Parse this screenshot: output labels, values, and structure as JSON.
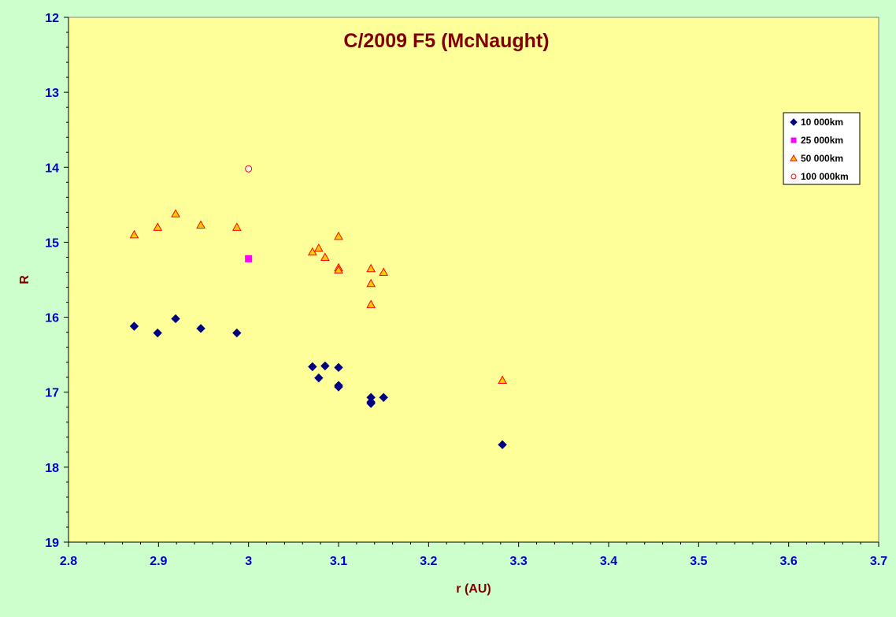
{
  "colors": {
    "page_bg": "#ccffcc",
    "plot_bg": "#ffff99",
    "title": "#800000",
    "tick_labels": "#0000cc",
    "series_10000": "#000080",
    "series_25000": "#ff00ff",
    "series_50000_fill": "#ffcc00",
    "series_50000_edge": "#ff0000",
    "series_100000_edge": "#ff0000"
  },
  "chart_data": {
    "type": "scatter",
    "title": "C/2009 F5 (McNaught)",
    "xlabel": "r (AU)",
    "ylabel": "R",
    "xlim": [
      2.8,
      3.7
    ],
    "ylim": [
      12,
      19
    ],
    "y_inverted": true,
    "x_ticks": [
      "2.8",
      "2.9",
      "3",
      "3.1",
      "3.2",
      "3.3",
      "3.4",
      "3.5",
      "3.6",
      "3.7"
    ],
    "y_ticks": [
      "12",
      "13",
      "14",
      "15",
      "16",
      "17",
      "18",
      "19"
    ],
    "grid": false,
    "legend_position": "top-right",
    "series": [
      {
        "name": "10 000km",
        "marker": "diamond",
        "points": [
          [
            2.873,
            16.12
          ],
          [
            2.899,
            16.21
          ],
          [
            2.919,
            16.02
          ],
          [
            2.947,
            16.15
          ],
          [
            2.987,
            16.21
          ],
          [
            3.071,
            16.66
          ],
          [
            3.078,
            16.81
          ],
          [
            3.085,
            16.65
          ],
          [
            3.1,
            16.67
          ],
          [
            3.1,
            16.91
          ],
          [
            3.1,
            16.93
          ],
          [
            3.136,
            17.07
          ],
          [
            3.136,
            17.15
          ],
          [
            3.136,
            17.13
          ],
          [
            3.15,
            17.07
          ],
          [
            3.282,
            17.7
          ]
        ]
      },
      {
        "name": "25 000km",
        "marker": "square",
        "points": [
          [
            3.0,
            15.22
          ]
        ]
      },
      {
        "name": "50 000km",
        "marker": "triangle",
        "points": [
          [
            2.873,
            14.9
          ],
          [
            2.899,
            14.8
          ],
          [
            2.919,
            14.62
          ],
          [
            2.947,
            14.77
          ],
          [
            2.987,
            14.8
          ],
          [
            3.071,
            15.13
          ],
          [
            3.078,
            15.08
          ],
          [
            3.085,
            15.2
          ],
          [
            3.1,
            14.92
          ],
          [
            3.1,
            15.34
          ],
          [
            3.1,
            15.37
          ],
          [
            3.136,
            15.35
          ],
          [
            3.136,
            15.55
          ],
          [
            3.136,
            15.83
          ],
          [
            3.15,
            15.4
          ],
          [
            3.282,
            16.84
          ]
        ]
      },
      {
        "name": "100 000km",
        "marker": "circle",
        "points": [
          [
            3.0,
            14.02
          ]
        ]
      }
    ]
  }
}
